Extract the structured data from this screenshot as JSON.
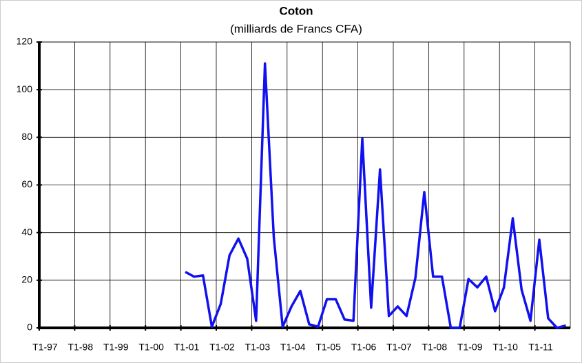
{
  "chart_data": {
    "type": "line",
    "title": "Coton",
    "subtitle": "(milliards de Francs CFA)",
    "categories": [
      "T1-97",
      null,
      null,
      null,
      "T1-98",
      null,
      null,
      null,
      "T1-99",
      null,
      null,
      null,
      "T1-00",
      null,
      null,
      null,
      "T1-01",
      null,
      null,
      null,
      "T1-02",
      null,
      null,
      null,
      "T1-03",
      null,
      null,
      null,
      "T1-04",
      null,
      null,
      null,
      "T1-05",
      null,
      null,
      null,
      "T1-06",
      null,
      null,
      null,
      "T1-07",
      null,
      null,
      null,
      "T1-08",
      null,
      null,
      null,
      "T1-09",
      null,
      null,
      null,
      "T1-10",
      null,
      null,
      null,
      "T1-11",
      null,
      null,
      null
    ],
    "values": [
      null,
      null,
      null,
      null,
      null,
      null,
      null,
      null,
      null,
      null,
      null,
      null,
      null,
      null,
      null,
      null,
      23.5,
      21.5,
      22,
      0.5,
      10,
      30.5,
      37.5,
      29,
      3,
      111,
      38,
      0.5,
      9,
      15.5,
      1.5,
      0.5,
      12,
      12,
      3.5,
      3,
      79.5,
      8.5,
      66.5,
      5,
      9,
      5,
      21,
      57,
      21.5,
      21.5,
      0,
      0,
      20.5,
      17,
      21.5,
      7,
      17,
      46,
      16,
      3,
      37,
      4,
      0,
      1
    ],
    "color": "#1010f0",
    "ylim": [
      0,
      120
    ],
    "yticks": [
      0,
      20,
      40,
      60,
      80,
      100,
      120
    ],
    "grid": true
  }
}
